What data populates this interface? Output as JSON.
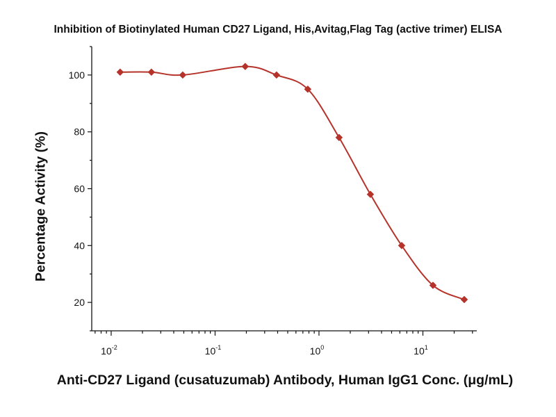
{
  "chart_data": {
    "type": "line",
    "title": "Inhibition of Biotinylated Human CD27 Ligand, His,Avitag,Flag Tag (active trimer) ELISA",
    "xlabel": "Anti-CD27 Ligand (cusatuzumab) Antibody, Human IgG1 Conc. (μg/mL)",
    "ylabel": "Percentage Activity (%)",
    "xscale": "log",
    "xlim": [
      0.0065,
      33
    ],
    "ylim": [
      10,
      110
    ],
    "x_ticks": [
      {
        "value": 0.01,
        "base": "10",
        "exp": "-2"
      },
      {
        "value": 0.1,
        "base": "10",
        "exp": "-1"
      },
      {
        "value": 1,
        "base": "10",
        "exp": "0"
      },
      {
        "value": 10,
        "base": "10",
        "exp": "1"
      }
    ],
    "y_ticks": [
      20,
      40,
      60,
      80,
      100
    ],
    "series": [
      {
        "name": "Percentage Activity",
        "color": "#b5332b",
        "marker": "diamond",
        "x": [
          0.0122,
          0.0244,
          0.0488,
          0.195,
          0.39,
          0.78,
          1.56,
          3.125,
          6.25,
          12.5,
          25
        ],
        "y": [
          101,
          101,
          100,
          103,
          100,
          95,
          78,
          58,
          40,
          26,
          21
        ]
      }
    ]
  }
}
